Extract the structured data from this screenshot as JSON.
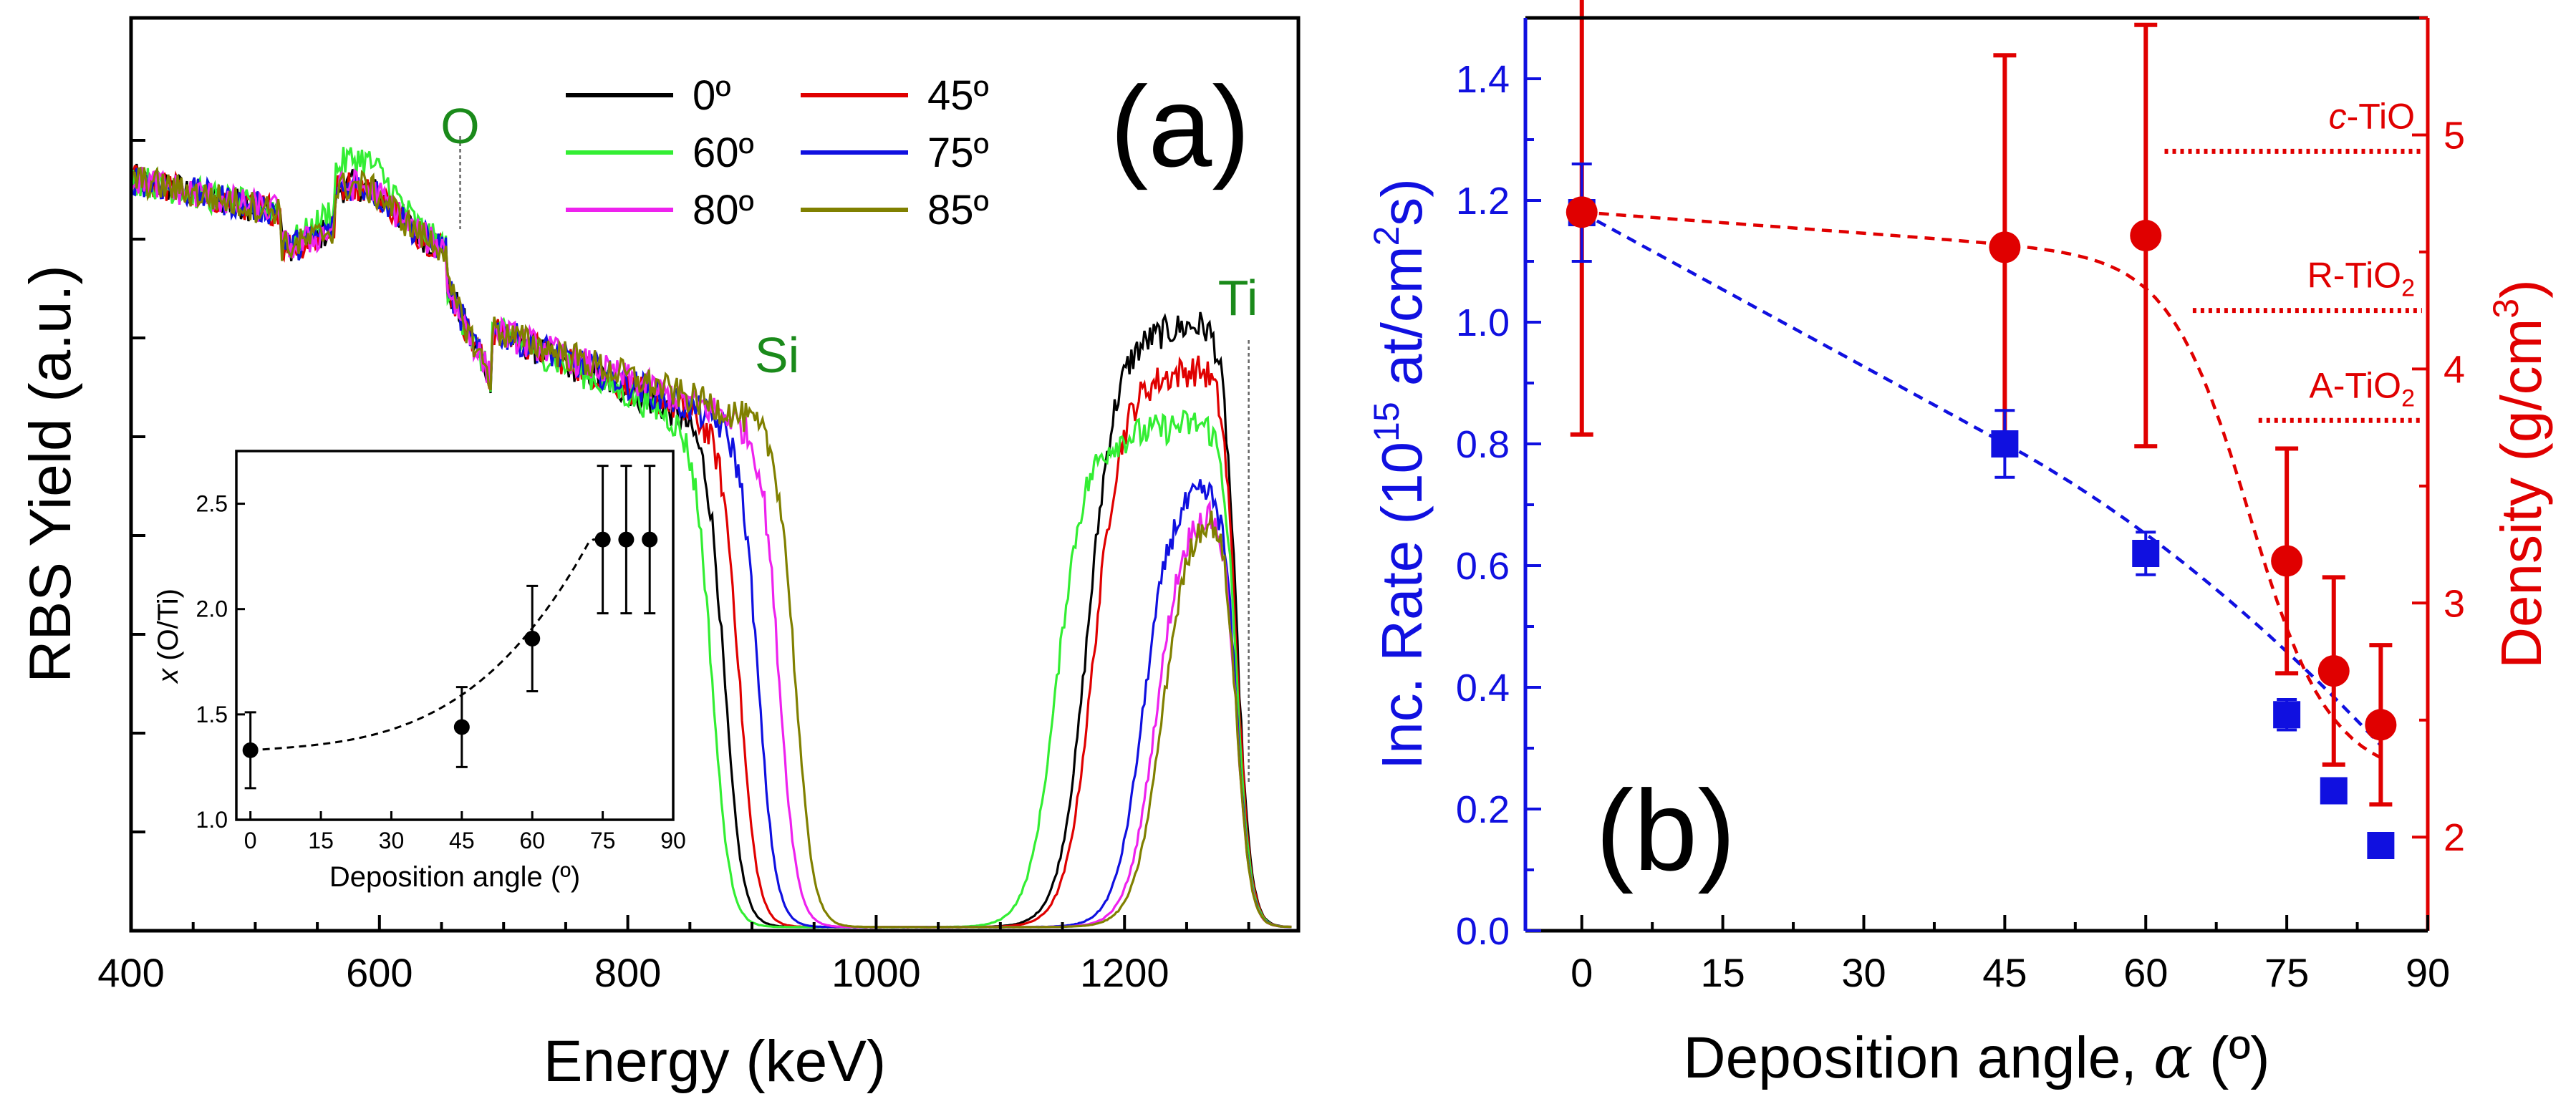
{
  "figure": {
    "panel_a_label": "(a)",
    "panel_b_label": "(b)"
  },
  "chart_data": [
    {
      "id": "a",
      "type": "line",
      "title": "",
      "xlabel": "Energy (keV)",
      "ylabel": "RBS Yield (a.u.)",
      "xlim": [
        400,
        1340
      ],
      "ylim": [
        0,
        1.0
      ],
      "xticks": [
        400,
        600,
        800,
        1000,
        1200
      ],
      "grid": false,
      "legend_position": "top-center",
      "element_labels": [
        {
          "text": "O",
          "x": 665,
          "color": "#1a8a1a"
        },
        {
          "text": "Si",
          "x": 900,
          "color": "#1a8a1a"
        },
        {
          "text": "Ti",
          "x": 1300,
          "color": "#1a8a1a"
        }
      ],
      "series": [
        {
          "name": "0º",
          "color": "#000000",
          "si_edge": 878,
          "ti_rise": 1170,
          "ti_plateau": 0.67
        },
        {
          "name": "45º",
          "color": "#e00000",
          "si_edge": 890,
          "ti_rise": 1175,
          "ti_plateau": 0.62
        },
        {
          "name": "60º",
          "color": "#33ee33",
          "si_edge": 868,
          "ti_rise": 1145,
          "ti_plateau": 0.56
        },
        {
          "name": "75º",
          "color": "#1010e0",
          "si_edge": 905,
          "ti_rise": 1215,
          "ti_plateau": 0.49
        },
        {
          "name": "80º",
          "color": "#ee22ee",
          "si_edge": 922,
          "ti_rise": 1225,
          "ti_plateau": 0.47
        },
        {
          "name": "85º",
          "color": "#808000",
          "si_edge": 935,
          "ti_rise": 1230,
          "ti_plateau": 0.47
        }
      ]
    },
    {
      "id": "a-inset",
      "type": "scatter",
      "xlabel": "Deposition angle (º)",
      "ylabel_italic": "x",
      "ylabel": " (O/Ti)",
      "xlim": [
        -3,
        90
      ],
      "ylim": [
        1.0,
        2.75
      ],
      "xticks": [
        0,
        15,
        30,
        45,
        60,
        75,
        90
      ],
      "yticks": [
        1.0,
        1.5,
        2.0,
        2.5
      ],
      "ytick_labels": [
        "1.0",
        "1.5",
        "2.0",
        "2.5"
      ],
      "points": [
        {
          "x": 0,
          "y": 1.33,
          "err": 0.18
        },
        {
          "x": 45,
          "y": 1.44,
          "err": 0.19
        },
        {
          "x": 60,
          "y": 1.86,
          "err": 0.25
        },
        {
          "x": 75,
          "y": 2.33,
          "err": 0.35
        },
        {
          "x": 80,
          "y": 2.33,
          "err": 0.35
        },
        {
          "x": 85,
          "y": 2.33,
          "err": 0.35
        }
      ]
    },
    {
      "id": "b",
      "type": "scatter",
      "xlabel_prefix": "Deposition angle, ",
      "xlabel_symbol": "α",
      "xlabel_suffix": " (º)",
      "xlim": [
        -6,
        90
      ],
      "xticks": [
        0,
        15,
        30,
        45,
        60,
        75,
        90
      ],
      "left_axis": {
        "label_pre": "Inc. Rate (10",
        "label_sup1": "15",
        "label_mid": " at/cm",
        "label_sup2": "2",
        "label_post": "s)",
        "color": "#1010e0",
        "ylim": [
          0.0,
          1.5
        ],
        "yticks": [
          0.0,
          0.2,
          0.4,
          0.6,
          0.8,
          1.0,
          1.2,
          1.4
        ],
        "ytick_labels": [
          "0.0",
          "0.2",
          "0.4",
          "0.6",
          "0.8",
          "1.0",
          "1.2",
          "1.4"
        ]
      },
      "right_axis": {
        "label_pre": "Density (g/cm",
        "label_sup": "3",
        "label_post": ")",
        "color": "#e00000",
        "ylim": [
          1.6,
          5.5
        ],
        "yticks": [
          2,
          3,
          4,
          5
        ],
        "ytick_labels": [
          "2",
          "3",
          "4",
          "5"
        ]
      },
      "series": [
        {
          "name": "Incorporation rate",
          "axis": "left",
          "color": "#1010e0",
          "marker": "square",
          "points": [
            {
              "x": 0,
              "y": 1.18,
              "err": 0.08
            },
            {
              "x": 45,
              "y": 0.8,
              "err": 0.055
            },
            {
              "x": 60,
              "y": 0.62,
              "err": 0.035
            },
            {
              "x": 75,
              "y": 0.355,
              "err": 0.025
            },
            {
              "x": 80,
              "y": 0.23,
              "err": 0.018
            },
            {
              "x": 85,
              "y": 0.14,
              "err": 0.015
            }
          ]
        },
        {
          "name": "Density",
          "axis": "right",
          "color": "#e00000",
          "marker": "circle",
          "points": [
            {
              "x": 0,
              "y": 4.67,
              "err": 0.95
            },
            {
              "x": 45,
              "y": 4.52,
              "err": 0.82
            },
            {
              "x": 60,
              "y": 4.57,
              "err": 0.9
            },
            {
              "x": 75,
              "y": 3.18,
              "err": 0.48
            },
            {
              "x": 80,
              "y": 2.71,
              "err": 0.4
            },
            {
              "x": 85,
              "y": 2.48,
              "err": 0.34
            }
          ]
        }
      ],
      "reference_lines": [
        {
          "label": "c-TiO",
          "label_italic": "c",
          "label_rest": "-TiO",
          "sub": "",
          "density": 4.93,
          "x_start": 62
        },
        {
          "label": "R-TiO2",
          "label_italic": "",
          "label_rest": "R-TiO",
          "sub": "2",
          "density": 4.25,
          "x_start": 65
        },
        {
          "label": "A-TiO2",
          "label_italic": "",
          "label_rest": "A-TiO",
          "sub": "2",
          "density": 3.78,
          "x_start": 72
        }
      ]
    }
  ]
}
